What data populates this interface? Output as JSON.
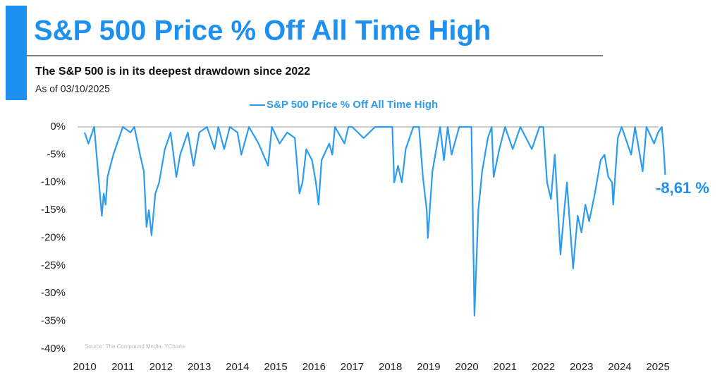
{
  "chart_data": {
    "type": "line",
    "title": "S&P 500 Price % Off All Time High",
    "subtitle": "The S&P 500 is in its deepest drawdown since 2022",
    "date_note": "As of 03/10/2025",
    "annotation": "-8,61 %",
    "source": "Source: The Compound Media, YCharts",
    "legend": "top",
    "x": [
      2010.0,
      2010.1,
      2010.25,
      2010.35,
      2010.45,
      2010.5,
      2010.55,
      2010.6,
      2010.75,
      2010.9,
      2011.0,
      2011.2,
      2011.3,
      2011.45,
      2011.55,
      2011.62,
      2011.68,
      2011.75,
      2011.85,
      2011.95,
      2012.1,
      2012.25,
      2012.4,
      2012.5,
      2012.7,
      2012.85,
      2013.0,
      2013.2,
      2013.4,
      2013.5,
      2013.65,
      2013.8,
      2014.0,
      2014.1,
      2014.3,
      2014.55,
      2014.8,
      2014.9,
      2015.1,
      2015.3,
      2015.5,
      2015.62,
      2015.7,
      2015.8,
      2015.95,
      2016.05,
      2016.12,
      2016.2,
      2016.4,
      2016.48,
      2016.55,
      2016.8,
      2016.9,
      2017.0,
      2017.3,
      2017.6,
      2017.9,
      2018.05,
      2018.1,
      2018.2,
      2018.3,
      2018.4,
      2018.6,
      2018.75,
      2018.85,
      2018.95,
      2018.98,
      2019.1,
      2019.3,
      2019.4,
      2019.5,
      2019.6,
      2019.8,
      2020.0,
      2020.12,
      2020.2,
      2020.3,
      2020.4,
      2020.55,
      2020.65,
      2020.7,
      2020.85,
      2021.0,
      2021.2,
      2021.4,
      2021.7,
      2021.9,
      2022.0,
      2022.1,
      2022.2,
      2022.3,
      2022.4,
      2022.45,
      2022.55,
      2022.62,
      2022.7,
      2022.78,
      2022.9,
      2023.0,
      2023.1,
      2023.2,
      2023.35,
      2023.5,
      2023.6,
      2023.7,
      2023.8,
      2023.83,
      2023.95,
      2024.05,
      2024.3,
      2024.4,
      2024.6,
      2024.7,
      2024.9,
      2025.0,
      2025.1,
      2025.15,
      2025.19
    ],
    "series": [
      {
        "name": "S&P 500 Price % Off All Time High",
        "color": "#2d9cf0",
        "values": [
          -1,
          -3,
          0,
          -8,
          -16,
          -12,
          -14,
          -9,
          -5,
          -2,
          0,
          -1,
          0,
          -5,
          -8,
          -18,
          -15,
          -19.5,
          -12,
          -10,
          -4,
          -1,
          -9,
          -5,
          -1,
          -7,
          -1,
          0,
          -4,
          0,
          -4,
          0,
          -1,
          -5,
          0,
          -3,
          -7,
          0,
          -3,
          -1,
          -2,
          -12,
          -10,
          -4,
          -6,
          -10,
          -14,
          -6,
          -3,
          -5,
          0,
          -3,
          0,
          0,
          -2,
          0,
          0,
          0,
          -10,
          -7,
          -10,
          -4,
          0,
          0,
          -9,
          -15,
          -20,
          -8,
          0,
          -6,
          0,
          -5,
          0,
          0,
          0,
          -34,
          -15,
          -8,
          -2,
          0,
          -9,
          -4,
          0,
          -4,
          0,
          -4,
          0,
          0,
          -10,
          -13,
          -5,
          -17,
          -23,
          -15,
          -10,
          -18,
          -25.5,
          -16,
          -19,
          -14,
          -17,
          -12,
          -6,
          -5,
          -9,
          -10,
          -14,
          -2,
          0,
          -5,
          0,
          -8,
          0,
          -3,
          -1,
          0,
          -4,
          -8.61
        ]
      }
    ],
    "xlim": [
      2010,
      2025.2
    ],
    "xticks": [
      2010,
      2011,
      2012,
      2013,
      2014,
      2015,
      2016,
      2017,
      2018,
      2019,
      2020,
      2021,
      2022,
      2023,
      2024,
      2025
    ],
    "ylim": [
      -40,
      0
    ],
    "yticks": [
      {
        "value": 0,
        "label": "0%"
      },
      {
        "value": -5,
        "label": "-5%"
      },
      {
        "value": -10,
        "label": "-10%"
      },
      {
        "value": -15,
        "label": "-15%"
      },
      {
        "value": -20,
        "label": "-20%"
      },
      {
        "value": -25,
        "label": "-25%"
      },
      {
        "value": -30,
        "label": "-30%"
      },
      {
        "value": -35,
        "label": "-35%"
      },
      {
        "value": -40,
        "label": "-40%"
      }
    ]
  }
}
